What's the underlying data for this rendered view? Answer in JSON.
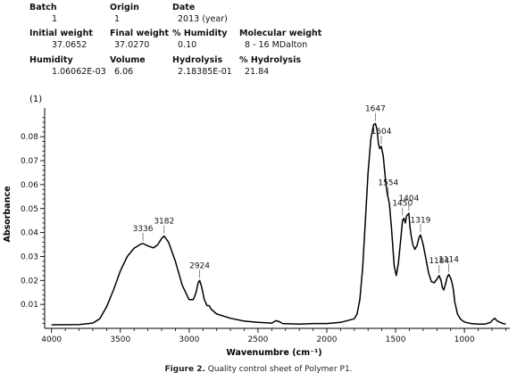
{
  "info_table": {
    "rows": [
      [
        {
          "label": "Batch",
          "value": "1"
        },
        {
          "label": "Origin",
          "value": "1"
        },
        {
          "label": "Date",
          "value": "2013 (year)"
        }
      ],
      [
        {
          "label": "Initial weight",
          "value": "37.0652"
        },
        {
          "label": "Final weight",
          "value": "37.0270"
        },
        {
          "label": "% Humidity",
          "value": "0.10"
        },
        {
          "label": "Molecular weight",
          "value": "8 - 16 MDalton"
        }
      ],
      [
        {
          "label": "Humidity",
          "value": "1.06062E-03"
        },
        {
          "label": "Volume",
          "value": "6.06"
        },
        {
          "label": "Hydrolysis",
          "value": "2.18385E-01"
        },
        {
          "label": "% Hydrolysis",
          "value": "21.84"
        }
      ]
    ]
  },
  "chart_data": {
    "type": "line",
    "panel_label": "(1)",
    "xlabel": "Wavenumbre (cm⁻¹)",
    "ylabel": "Absorbance",
    "xlim": [
      4050,
      670
    ],
    "ylim": [
      0,
      0.092
    ],
    "x_ticks": [
      4000,
      3500,
      3000,
      2500,
      2000,
      1500,
      1000
    ],
    "y_ticks": [
      0.01,
      0.02,
      0.03,
      0.04,
      0.05,
      0.06,
      0.07,
      0.08
    ],
    "y_tick_labels": [
      "0.01",
      "0.02",
      "0.03",
      "0.04",
      "0.05",
      "0.06",
      "0.07",
      "0.08"
    ],
    "grid": false,
    "series": [
      {
        "x": [
          4000,
          3800,
          3700,
          3650,
          3600,
          3550,
          3500,
          3450,
          3400,
          3350,
          3336,
          3300,
          3260,
          3230,
          3200,
          3182,
          3150,
          3100,
          3050,
          3000,
          2970,
          2950,
          2935,
          2924,
          2910,
          2890,
          2870,
          2855,
          2840,
          2800,
          2700,
          2600,
          2500,
          2400,
          2370,
          2345,
          2320,
          2200,
          2100,
          2000,
          1900,
          1800,
          1780,
          1760,
          1740,
          1720,
          1700,
          1680,
          1660,
          1647,
          1635,
          1625,
          1615,
          1604,
          1590,
          1580,
          1570,
          1560,
          1554,
          1545,
          1530,
          1510,
          1495,
          1480,
          1465,
          1450,
          1440,
          1430,
          1420,
          1404,
          1395,
          1385,
          1375,
          1360,
          1345,
          1330,
          1319,
          1300,
          1280,
          1260,
          1240,
          1220,
          1200,
          1184,
          1170,
          1160,
          1150,
          1140,
          1125,
          1114,
          1100,
          1090,
          1080,
          1070,
          1050,
          1030,
          1010,
          990,
          950,
          900,
          850,
          810,
          795,
          780,
          760,
          720,
          700
        ],
        "y": [
          0.0015,
          0.0016,
          0.0022,
          0.004,
          0.009,
          0.016,
          0.024,
          0.03,
          0.0335,
          0.0352,
          0.0354,
          0.0344,
          0.0336,
          0.0348,
          0.0375,
          0.0385,
          0.036,
          0.028,
          0.018,
          0.012,
          0.012,
          0.015,
          0.019,
          0.02,
          0.0175,
          0.012,
          0.0095,
          0.0095,
          0.008,
          0.006,
          0.0042,
          0.003,
          0.0025,
          0.0022,
          0.0032,
          0.0028,
          0.002,
          0.0018,
          0.002,
          0.002,
          0.0025,
          0.004,
          0.006,
          0.012,
          0.025,
          0.045,
          0.065,
          0.079,
          0.085,
          0.0855,
          0.083,
          0.077,
          0.075,
          0.076,
          0.072,
          0.066,
          0.06,
          0.056,
          0.0545,
          0.052,
          0.042,
          0.026,
          0.022,
          0.027,
          0.036,
          0.045,
          0.046,
          0.044,
          0.047,
          0.048,
          0.042,
          0.038,
          0.035,
          0.033,
          0.0345,
          0.038,
          0.039,
          0.035,
          0.029,
          0.023,
          0.0195,
          0.019,
          0.0205,
          0.022,
          0.02,
          0.017,
          0.016,
          0.018,
          0.0215,
          0.0225,
          0.021,
          0.019,
          0.016,
          0.011,
          0.006,
          0.004,
          0.003,
          0.0025,
          0.002,
          0.0018,
          0.0018,
          0.0025,
          0.0035,
          0.0042,
          0.003,
          0.002,
          0.0018
        ]
      }
    ],
    "annotations": [
      {
        "text": "3336",
        "x": 3336,
        "y": 0.0354
      },
      {
        "text": "3182",
        "x": 3182,
        "y": 0.0385
      },
      {
        "text": "2924",
        "x": 2924,
        "y": 0.02
      },
      {
        "text": "1647",
        "x": 1647,
        "y": 0.0855
      },
      {
        "text": "1604",
        "x": 1604,
        "y": 0.076
      },
      {
        "text": "1554",
        "x": 1554,
        "y": 0.0545
      },
      {
        "text": "1450",
        "x": 1450,
        "y": 0.046
      },
      {
        "text": "1404",
        "x": 1404,
        "y": 0.048
      },
      {
        "text": "1319",
        "x": 1319,
        "y": 0.039
      },
      {
        "text": "1184",
        "x": 1184,
        "y": 0.022
      },
      {
        "text": "1114",
        "x": 1114,
        "y": 0.0225
      }
    ],
    "line_color": "#000000"
  },
  "caption": {
    "label": "Figure 2.",
    "text": " Quality control sheet of Polymer P1."
  }
}
